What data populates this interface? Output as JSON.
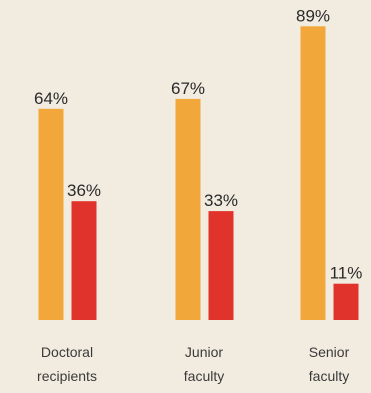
{
  "chart_data": {
    "type": "bar",
    "categories": [
      [
        "Doctoral",
        "recipients"
      ],
      [
        "Junior",
        "faculty"
      ],
      [
        "Senior",
        "faculty"
      ]
    ],
    "series": [
      {
        "values": [
          64,
          67,
          89
        ],
        "labels": [
          "64%",
          "67%",
          "89%"
        ],
        "color": "#f2a73b"
      },
      {
        "values": [
          36,
          33,
          11
        ],
        "labels": [
          "36%",
          "33%",
          "11%"
        ],
        "color": "#e0332b"
      }
    ],
    "ylim": [
      0,
      100
    ],
    "grid": false,
    "legend": "none"
  },
  "colors": {
    "background": "#f2ece0"
  }
}
